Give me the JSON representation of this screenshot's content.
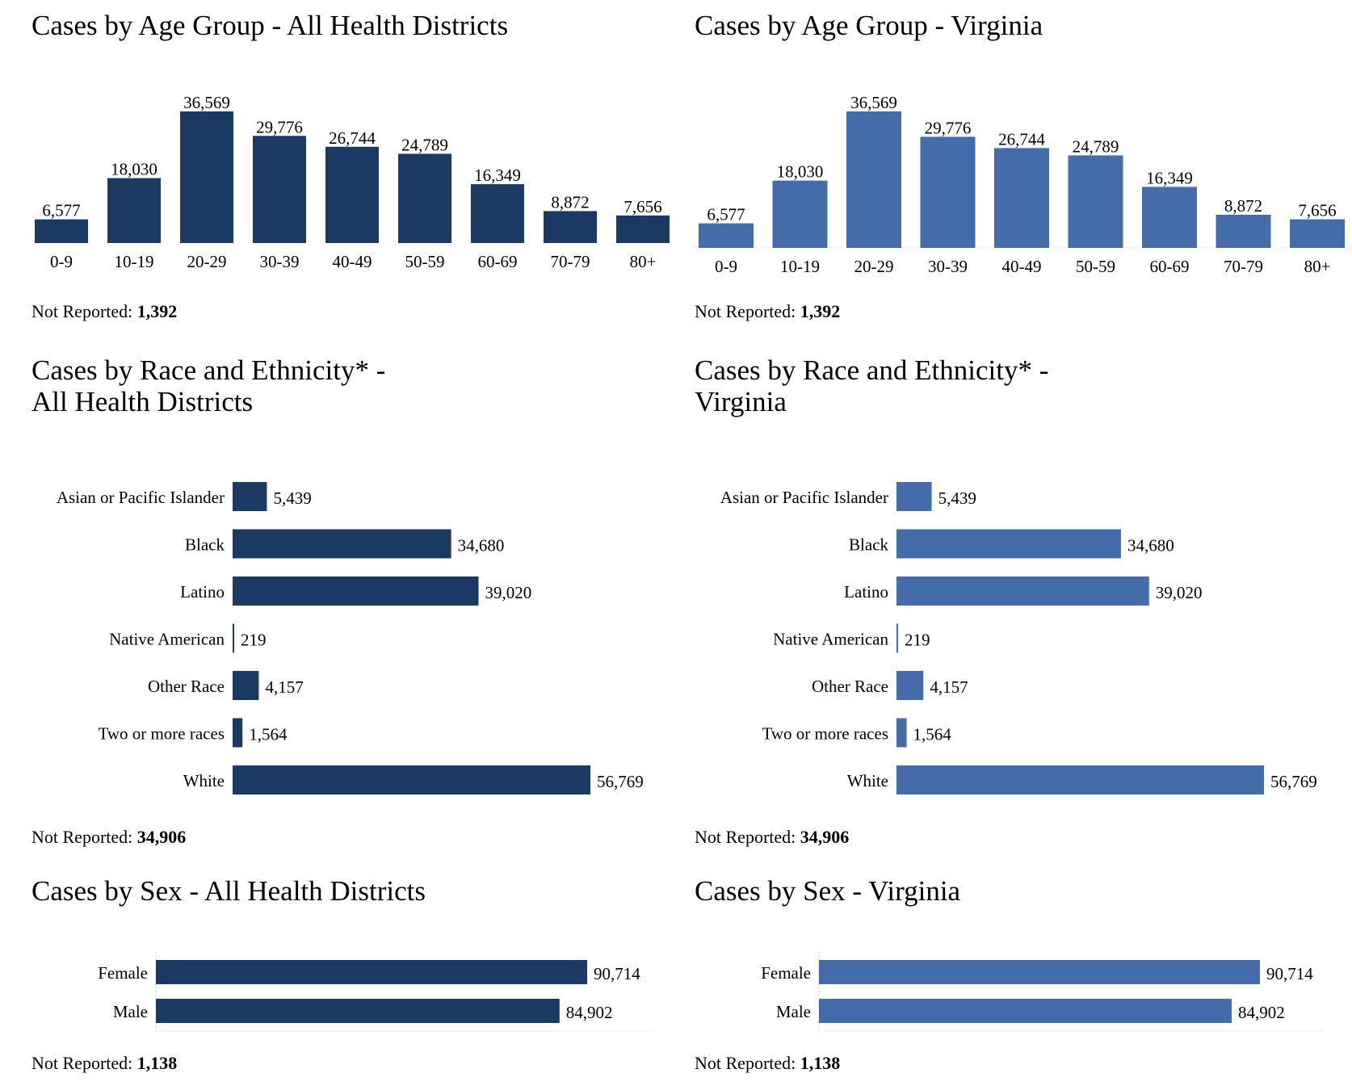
{
  "colors": {
    "dark": "#1a3a64",
    "light": "#436ca9"
  },
  "not_reported_label": "Not Reported:",
  "chart_data": [
    {
      "id": "age-all",
      "type": "bar",
      "title": "Cases by Age Group - All Health Districts",
      "categories": [
        "0-9",
        "10-19",
        "20-29",
        "30-39",
        "40-49",
        "50-59",
        "60-69",
        "70-79",
        "80+"
      ],
      "values": [
        6577,
        18030,
        36569,
        29776,
        26744,
        24789,
        16349,
        8872,
        7656
      ],
      "value_labels": [
        "6,577",
        "18,030",
        "36,569",
        "29,776",
        "26,744",
        "24,789",
        "16,349",
        "8,872",
        "7,656"
      ],
      "not_reported": "1,392",
      "color": "#1a3a64"
    },
    {
      "id": "age-va",
      "type": "bar",
      "title": "Cases by Age Group - Virginia",
      "categories": [
        "0-9",
        "10-19",
        "20-29",
        "30-39",
        "40-49",
        "50-59",
        "60-69",
        "70-79",
        "80+"
      ],
      "values": [
        6577,
        18030,
        36569,
        29776,
        26744,
        24789,
        16349,
        8872,
        7656
      ],
      "value_labels": [
        "6,577",
        "18,030",
        "36,569",
        "29,776",
        "26,744",
        "24,789",
        "16,349",
        "8,872",
        "7,656"
      ],
      "not_reported": "1,392",
      "color": "#436ca9"
    },
    {
      "id": "race-all",
      "type": "bar",
      "orientation": "horizontal",
      "title_lines": [
        "Cases by Race and Ethnicity* -",
        "All Health Districts"
      ],
      "categories": [
        "Asian or Pacific Islander",
        "Black",
        "Latino",
        "Native American",
        "Other Race",
        "Two or more races",
        "White"
      ],
      "values": [
        5439,
        34680,
        39020,
        219,
        4157,
        1564,
        56769
      ],
      "value_labels": [
        "5,439",
        "34,680",
        "39,020",
        "219",
        "4,157",
        "1,564",
        "56,769"
      ],
      "not_reported": "34,906",
      "color": "#1a3a64"
    },
    {
      "id": "race-va",
      "type": "bar",
      "orientation": "horizontal",
      "title_lines": [
        "Cases by Race and Ethnicity* -",
        "Virginia"
      ],
      "categories": [
        "Asian or Pacific Islander",
        "Black",
        "Latino",
        "Native American",
        "Other Race",
        "Two or more races",
        "White"
      ],
      "values": [
        5439,
        34680,
        39020,
        219,
        4157,
        1564,
        56769
      ],
      "value_labels": [
        "5,439",
        "34,680",
        "39,020",
        "219",
        "4,157",
        "1,564",
        "56,769"
      ],
      "not_reported": "34,906",
      "color": "#436ca9"
    },
    {
      "id": "sex-all",
      "type": "bar",
      "orientation": "horizontal",
      "title": "Cases by Sex - All Health Districts",
      "categories": [
        "Female",
        "Male"
      ],
      "values": [
        90714,
        84902
      ],
      "value_labels": [
        "90,714",
        "84,902"
      ],
      "not_reported": "1,138",
      "color": "#1a3a64"
    },
    {
      "id": "sex-va",
      "type": "bar",
      "orientation": "horizontal",
      "title": "Cases by Sex - Virginia",
      "categories": [
        "Female",
        "Male"
      ],
      "values": [
        90714,
        84902
      ],
      "value_labels": [
        "90,714",
        "84,902"
      ],
      "not_reported": "1,138",
      "color": "#436ca9"
    }
  ]
}
